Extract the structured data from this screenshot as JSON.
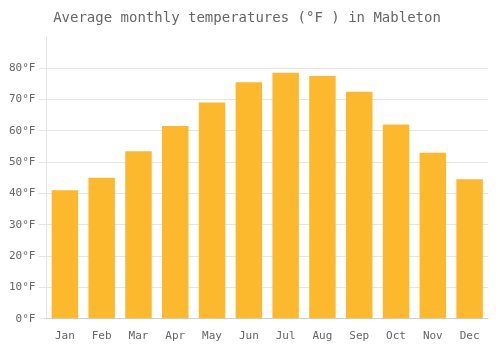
{
  "chart_data": {
    "type": "bar",
    "title": "Average monthly temperatures (°F ) in Mableton",
    "categories": [
      "Jan",
      "Feb",
      "Mar",
      "Apr",
      "May",
      "Jun",
      "Jul",
      "Aug",
      "Sep",
      "Oct",
      "Nov",
      "Dec"
    ],
    "values": [
      41,
      45,
      53.5,
      61.5,
      69,
      75.5,
      78.5,
      77.5,
      72.5,
      62,
      53,
      44.5
    ],
    "color": "#FDB92E",
    "ylim": [
      0,
      90
    ],
    "yticks": [
      {
        "value": 0,
        "label": "0°F"
      },
      {
        "value": 10,
        "label": "10°F"
      },
      {
        "value": 20,
        "label": "20°F"
      },
      {
        "value": 30,
        "label": "30°F"
      },
      {
        "value": 40,
        "label": "40°F"
      },
      {
        "value": 50,
        "label": "50°F"
      },
      {
        "value": 60,
        "label": "60°F"
      },
      {
        "value": 70,
        "label": "70°F"
      },
      {
        "value": 80,
        "label": "80°F"
      }
    ],
    "grid": true
  }
}
